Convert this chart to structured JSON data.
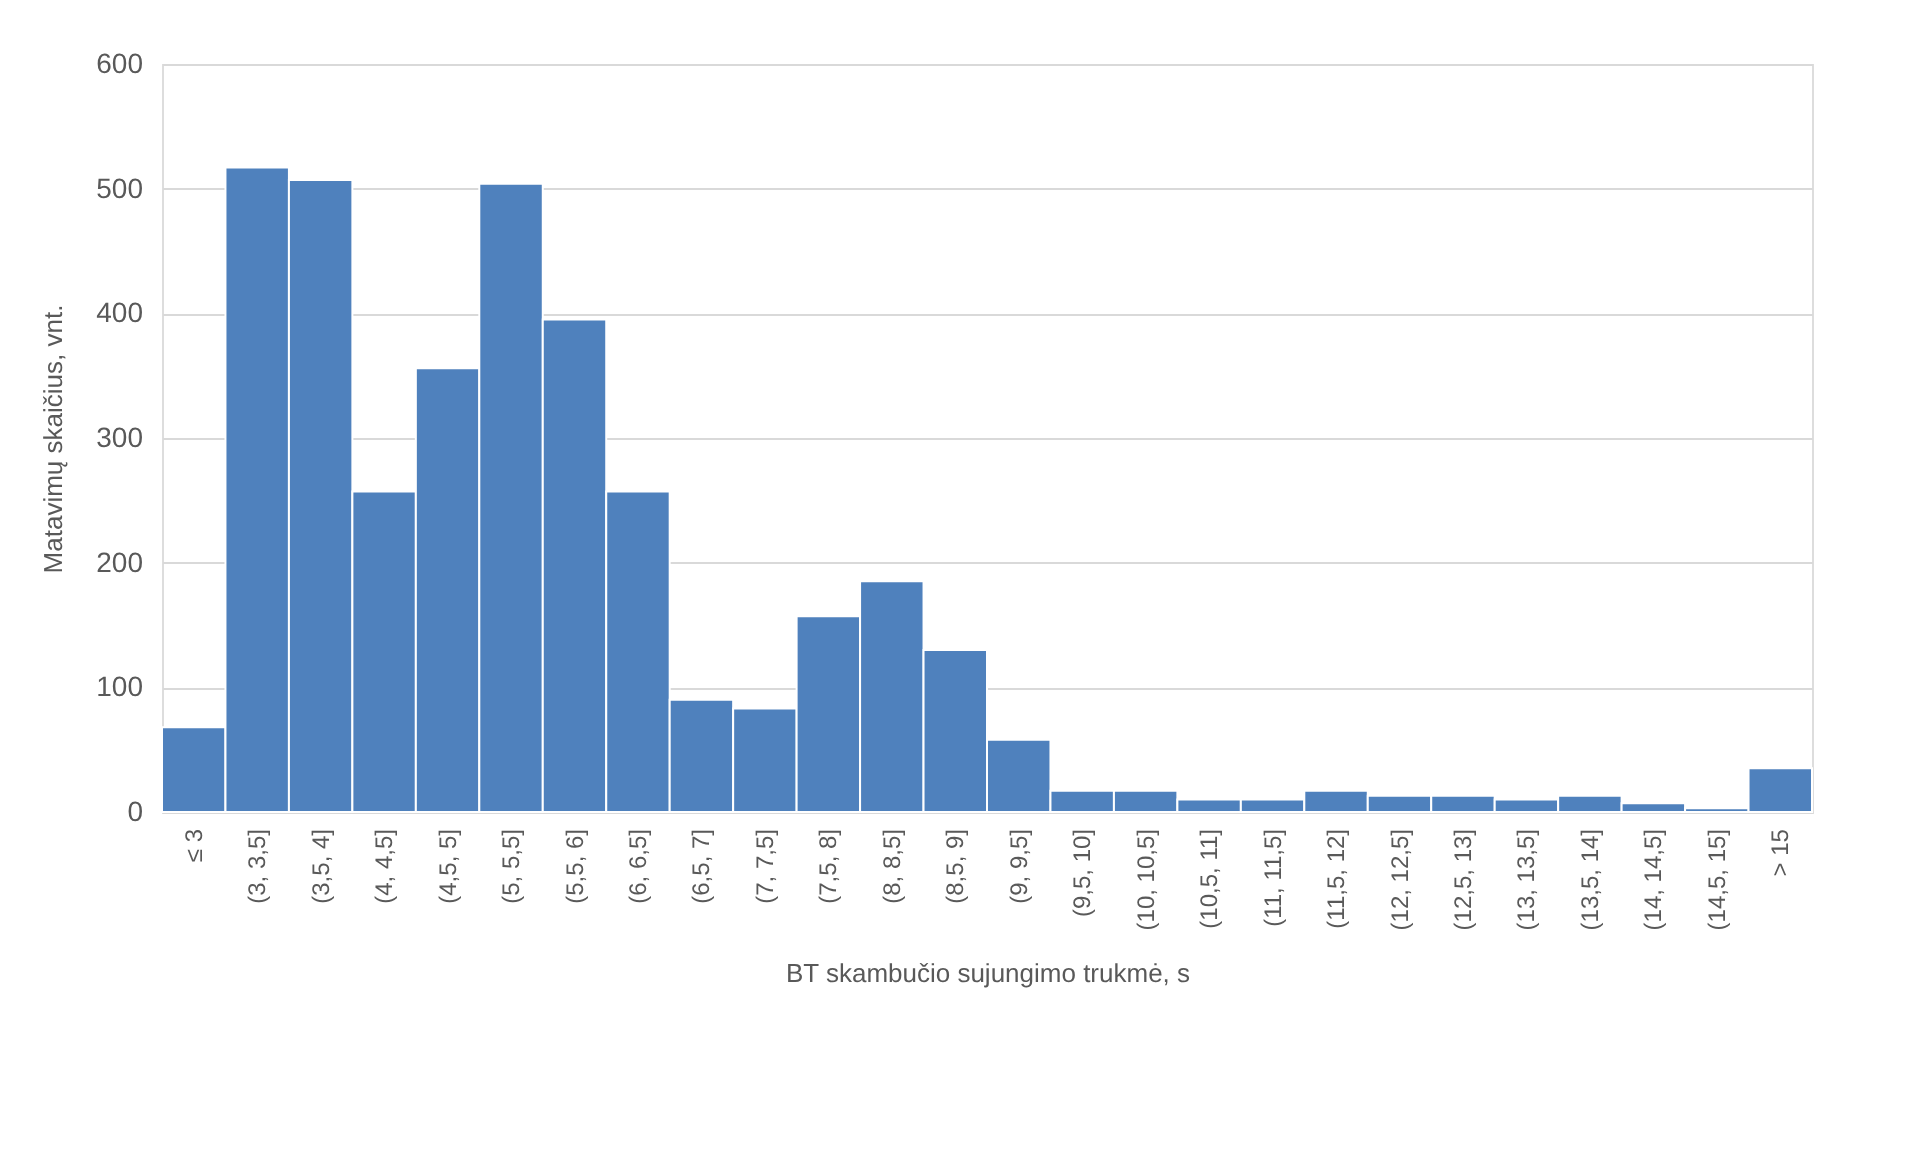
{
  "chart_data": {
    "type": "bar",
    "xlabel": "BT skambučio sujungimo trukmė, s",
    "ylabel": "Matavimų skaičius, vnt.",
    "categories": [
      "≤ 3",
      "(3, 3,5]",
      "(3,5, 4]",
      "(4, 4,5]",
      "(4,5, 5]",
      "(5, 5,5]",
      "(5,5, 6]",
      "(6, 6,5]",
      "(6,5, 7]",
      "(7, 7,5]",
      "(7,5, 8]",
      "(8, 8,5]",
      "(8,5, 9]",
      "(9, 9,5]",
      "(9,5, 10]",
      "(10, 10,5]",
      "(10,5, 11]",
      "(11, 11,5]",
      "(11,5, 12]",
      "(12, 12,5]",
      "(12,5, 13]",
      "(13, 13,5]",
      "(13,5, 14]",
      "(14, 14,5]",
      "(14,5, 15]",
      "> 15"
    ],
    "values": [
      68,
      517,
      507,
      257,
      356,
      504,
      395,
      257,
      90,
      83,
      157,
      185,
      130,
      58,
      17,
      17,
      10,
      10,
      17,
      13,
      13,
      10,
      13,
      7,
      3,
      35
    ],
    "color": "#4f81bd",
    "ylim": [
      0,
      600
    ],
    "yticks": [
      0,
      100,
      200,
      300,
      400,
      500,
      600
    ],
    "grid": "y"
  }
}
